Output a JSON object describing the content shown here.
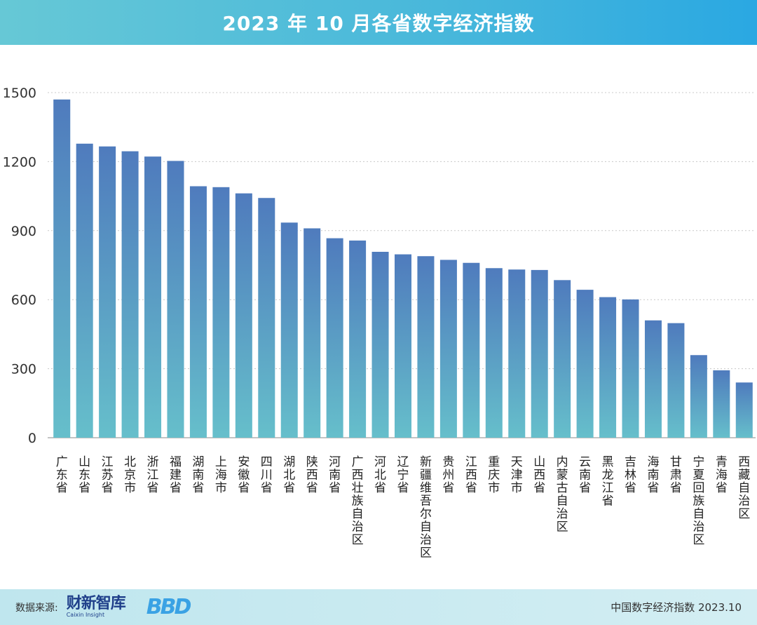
{
  "header": {
    "title": "2023 年 10 月各省数字经济指数"
  },
  "footer": {
    "source_label": "数据来源:",
    "logo_cn": "财新智库",
    "logo_en": "Caixin Insight",
    "logo_bbd": "BBD",
    "index_label": "中国数字经济指数 2023.10"
  },
  "colors": {
    "bar_top": "#4f7bbd",
    "bar_bottom": "#66bfcb",
    "header": "#47b7db"
  },
  "chart_data": {
    "type": "bar",
    "title": "2023 年 10 月各省数字经济指数",
    "xlabel": "",
    "ylabel": "",
    "ylim": [
      0,
      1500
    ],
    "yticks": [
      0,
      300,
      600,
      900,
      1200,
      1500
    ],
    "grid": true,
    "categories": [
      "广东省",
      "山东省",
      "江苏省",
      "北京市",
      "浙江省",
      "福建省",
      "湖南省",
      "上海市",
      "安徽省",
      "四川省",
      "湖北省",
      "陕西省",
      "河南省",
      "广西壮族自治区",
      "河北省",
      "辽宁省",
      "新疆维吾尔自治区",
      "贵州省",
      "江西省",
      "重庆市",
      "天津市",
      "山西省",
      "内蒙古自治区",
      "云南省",
      "黑龙江省",
      "吉林省",
      "海南省",
      "甘肃省",
      "宁夏回族自治区",
      "青海省",
      "西藏自治区"
    ],
    "values": [
      1470,
      1278,
      1266,
      1245,
      1222,
      1203,
      1093,
      1089,
      1062,
      1042,
      935,
      910,
      867,
      857,
      808,
      797,
      789,
      773,
      760,
      737,
      731,
      729,
      685,
      643,
      611,
      601,
      510,
      498,
      359,
      293,
      240
    ]
  }
}
